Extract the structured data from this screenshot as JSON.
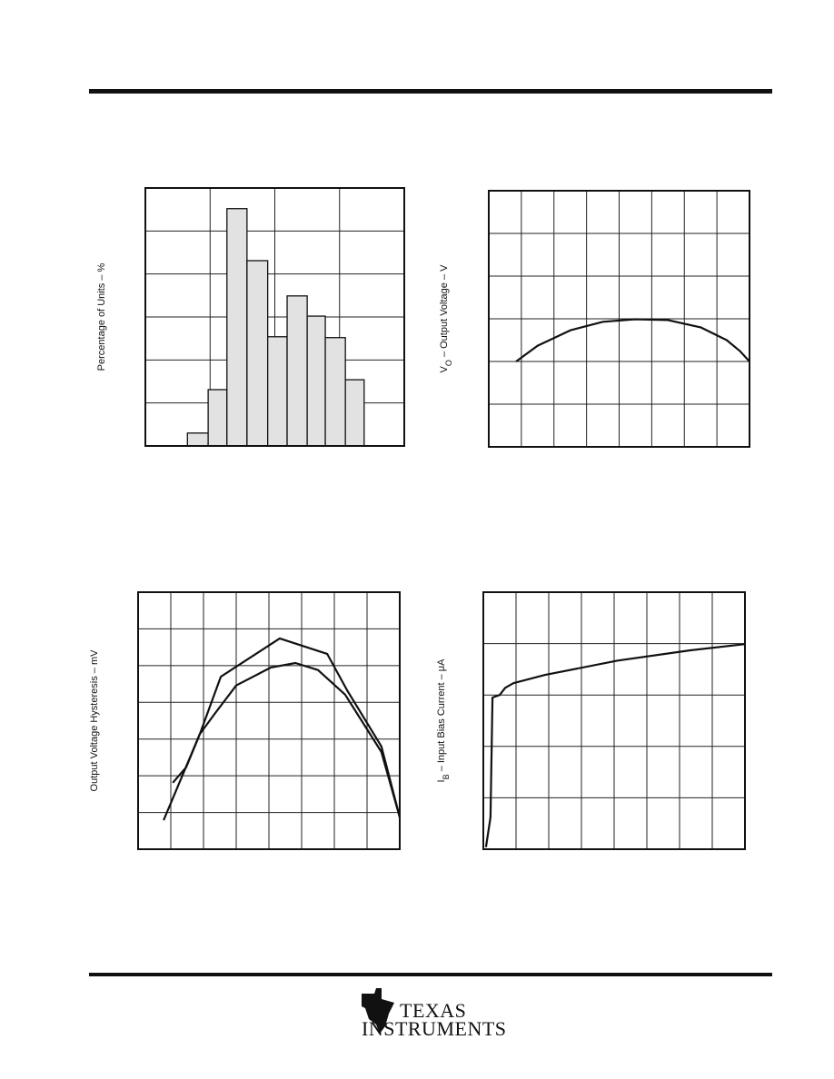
{
  "chart_data": [
    {
      "type": "histogram",
      "y_label": [
        "Percentage of Units – %"
      ],
      "bins": [
        0.65,
        0.97,
        1.26,
        1.57,
        1.89,
        2.19,
        2.5,
        2.78,
        3.09,
        3.38
      ],
      "values": [
        0.3,
        1.31,
        5.52,
        4.31,
        2.54,
        3.49,
        3.02,
        2.52,
        1.54
      ],
      "color": "#e2e2e2",
      "xlim": [
        0,
        4
      ],
      "ylim": [
        0,
        6
      ],
      "xticks": [
        0,
        1,
        2,
        3,
        4
      ],
      "yticks": [
        0,
        1,
        2,
        3,
        4,
        5,
        6
      ],
      "grid": true
    },
    {
      "type": "line",
      "y_label": [
        "V",
        "O",
        " – Output Voltage – V"
      ],
      "xlim": [
        0,
        8
      ],
      "ylim": [
        0,
        6
      ],
      "xticks": [
        0,
        1,
        2,
        3,
        4,
        5,
        6,
        7,
        8
      ],
      "yticks": [
        0,
        1,
        2,
        3,
        4,
        5,
        6
      ],
      "grid": true,
      "series": [
        {
          "color": "#111111",
          "x": [
            0.84,
            1.5,
            2.5,
            3.5,
            4.5,
            5.5,
            6.5,
            7.3,
            7.7,
            8
          ],
          "values": [
            2.0,
            2.37,
            2.73,
            2.93,
            2.99,
            2.97,
            2.8,
            2.5,
            2.25,
            2.0
          ]
        }
      ]
    },
    {
      "type": "line",
      "y_label": [
        "Output Voltage Hysteresis – mV"
      ],
      "xlim": [
        0,
        8
      ],
      "ylim": [
        0,
        7
      ],
      "xticks": [
        0,
        1,
        2,
        3,
        4,
        5,
        6,
        7,
        8
      ],
      "yticks": [
        0,
        1,
        2,
        3,
        4,
        5,
        6,
        7
      ],
      "grid": true,
      "series": [
        {
          "color": "#111111",
          "x": [
            0.78,
            1.89,
            2.53,
            4.33,
            5.78,
            6.39,
            7.44,
            8
          ],
          "values": [
            0.79,
            3.14,
            4.7,
            5.74,
            5.32,
            4.33,
            2.8,
            0.87
          ]
        },
        {
          "color": "#111111",
          "x": [
            1.06,
            1.47,
            1.89,
            2.36,
            3,
            4.06,
            4.81,
            5.5,
            6.33,
            7.44,
            8
          ],
          "values": [
            1.81,
            2.23,
            3.14,
            3.71,
            4.46,
            4.95,
            5.07,
            4.88,
            4.21,
            2.65,
            0.87
          ]
        }
      ]
    },
    {
      "type": "line",
      "y_label": [
        "I",
        "B",
        " – Input Bias Current – μA"
      ],
      "xlim": [
        0,
        8
      ],
      "ylim": [
        0,
        5
      ],
      "xticks": [
        0,
        1,
        2,
        3,
        4,
        5,
        6,
        7,
        8
      ],
      "yticks": [
        0,
        1,
        2,
        3,
        4,
        5
      ],
      "grid": true,
      "series": [
        {
          "color": "#111111",
          "x": [
            0.08,
            0.22,
            0.28,
            0.5,
            0.67,
            0.92,
            1.89,
            4.11,
            6.33,
            8
          ],
          "values": [
            0.04,
            0.62,
            2.95,
            3.0,
            3.14,
            3.23,
            3.39,
            3.67,
            3.87,
            3.99
          ]
        }
      ]
    }
  ],
  "logo": {
    "line1": "TEXAS",
    "line2": "INSTRUMENTS"
  }
}
